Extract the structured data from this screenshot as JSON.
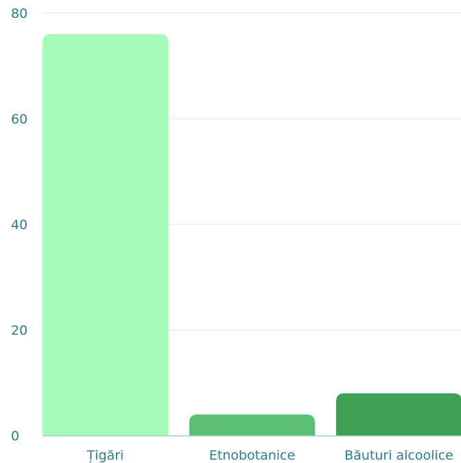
{
  "chart_data": {
    "type": "bar",
    "categories": [
      "Țigări",
      "Etnobotanice",
      "Băuturi alcoolice"
    ],
    "values": [
      76,
      4,
      8
    ],
    "ylim": [
      0,
      80
    ],
    "yticks": [
      "0",
      "20",
      "40",
      "60",
      "80"
    ],
    "grid": true,
    "legend": "none",
    "colors": [
      "#a6fbb9",
      "#5bbf74",
      "#3ea055"
    ],
    "gridline_color": "#d6ece8",
    "axis_color": "#9fcfc6"
  }
}
